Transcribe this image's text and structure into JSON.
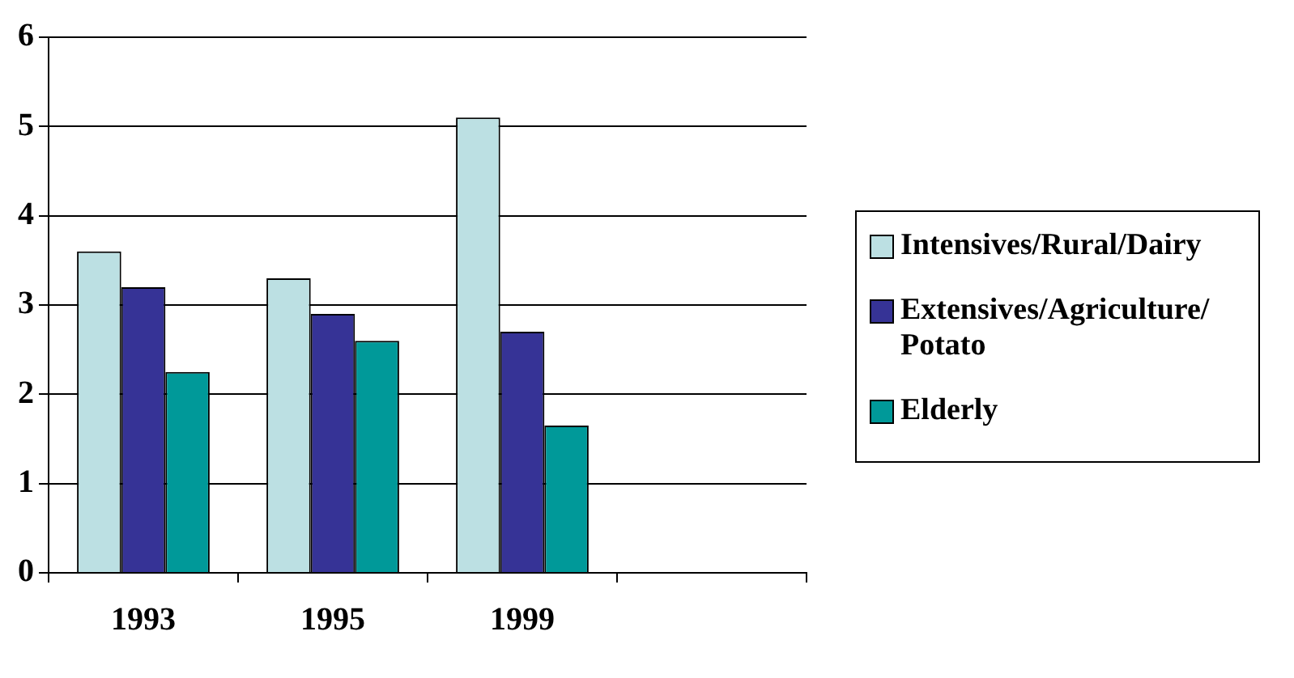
{
  "chart_data": {
    "type": "bar",
    "categories": [
      "1993",
      "1995",
      "1999",
      null
    ],
    "series": [
      {
        "name": "Intensives/Rural/Dairy",
        "color": "#bce0e3",
        "values": [
          3.6,
          3.3,
          5.1,
          null
        ]
      },
      {
        "name": "Extensives/Agriculture/ Potato",
        "color": "#363396",
        "values": [
          3.2,
          2.9,
          2.7,
          null
        ]
      },
      {
        "name": "Elderly",
        "color": "#009999",
        "values": [
          2.25,
          2.6,
          1.65,
          null
        ]
      }
    ],
    "ylim": [
      0,
      6
    ],
    "yticks": [
      0,
      1,
      2,
      3,
      4,
      5,
      6
    ],
    "grid": "y",
    "legend": "right"
  }
}
